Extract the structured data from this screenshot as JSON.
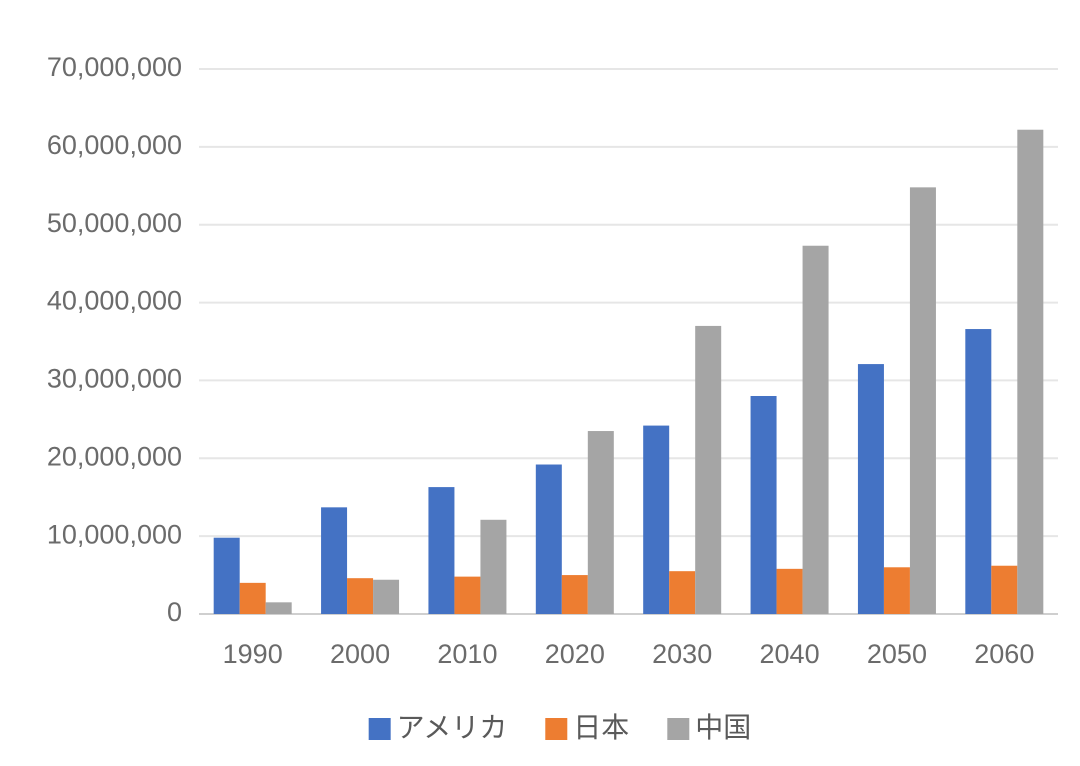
{
  "chart_data": {
    "type": "bar",
    "categories": [
      "1990",
      "2000",
      "2010",
      "2020",
      "2030",
      "2040",
      "2050",
      "2060"
    ],
    "series": [
      {
        "name": "アメリカ",
        "color": "#4472c4",
        "values": [
          9800000,
          13700000,
          16300000,
          19200000,
          24200000,
          28000000,
          32100000,
          36600000
        ]
      },
      {
        "name": "日本",
        "color": "#ed7d31",
        "values": [
          4000000,
          4600000,
          4800000,
          5000000,
          5500000,
          5800000,
          6000000,
          6200000
        ]
      },
      {
        "name": "中国",
        "color": "#a5a5a5",
        "values": [
          1500000,
          4400000,
          12100000,
          23500000,
          37000000,
          47300000,
          54800000,
          62200000
        ]
      }
    ],
    "y_ticks": [
      "0",
      "10,000,000",
      "20,000,000",
      "30,000,000",
      "40,000,000",
      "50,000,000",
      "60,000,000",
      "70,000,000"
    ],
    "ylim": [
      0,
      70000000
    ],
    "grid": true,
    "legend_position": "bottom"
  }
}
